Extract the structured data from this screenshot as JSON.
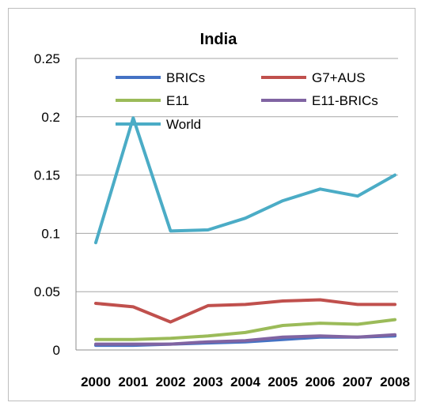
{
  "chart_data": {
    "type": "line",
    "title": "India",
    "xlabel": "",
    "ylabel": "",
    "x": [
      "2000",
      "2001",
      "2002",
      "2003",
      "2004",
      "2005",
      "2006",
      "2007",
      "2008"
    ],
    "ylim": [
      0,
      0.25
    ],
    "yticks": [
      "0",
      "0.05",
      "0.1",
      "0.15",
      "0.2",
      "0.25"
    ],
    "grid": "horizontal",
    "legend_position": "top",
    "series": [
      {
        "name": "BRICs",
        "color": "#4472c4",
        "values": [
          0.004,
          0.004,
          0.005,
          0.006,
          0.007,
          0.009,
          0.011,
          0.011,
          0.012
        ]
      },
      {
        "name": "G7+AUS",
        "color": "#c0504d",
        "values": [
          0.04,
          0.037,
          0.024,
          0.038,
          0.039,
          0.042,
          0.043,
          0.039,
          0.039
        ]
      },
      {
        "name": "E11",
        "color": "#9bbb59",
        "values": [
          0.009,
          0.009,
          0.01,
          0.012,
          0.015,
          0.021,
          0.023,
          0.022,
          0.026
        ]
      },
      {
        "name": "E11-BRICs",
        "color": "#8064a2",
        "values": [
          0.005,
          0.005,
          0.005,
          0.007,
          0.008,
          0.011,
          0.012,
          0.011,
          0.013
        ]
      },
      {
        "name": "World",
        "color": "#4bacc6",
        "values": [
          0.092,
          0.199,
          0.102,
          0.103,
          0.113,
          0.128,
          0.138,
          0.132,
          0.15
        ]
      }
    ]
  }
}
